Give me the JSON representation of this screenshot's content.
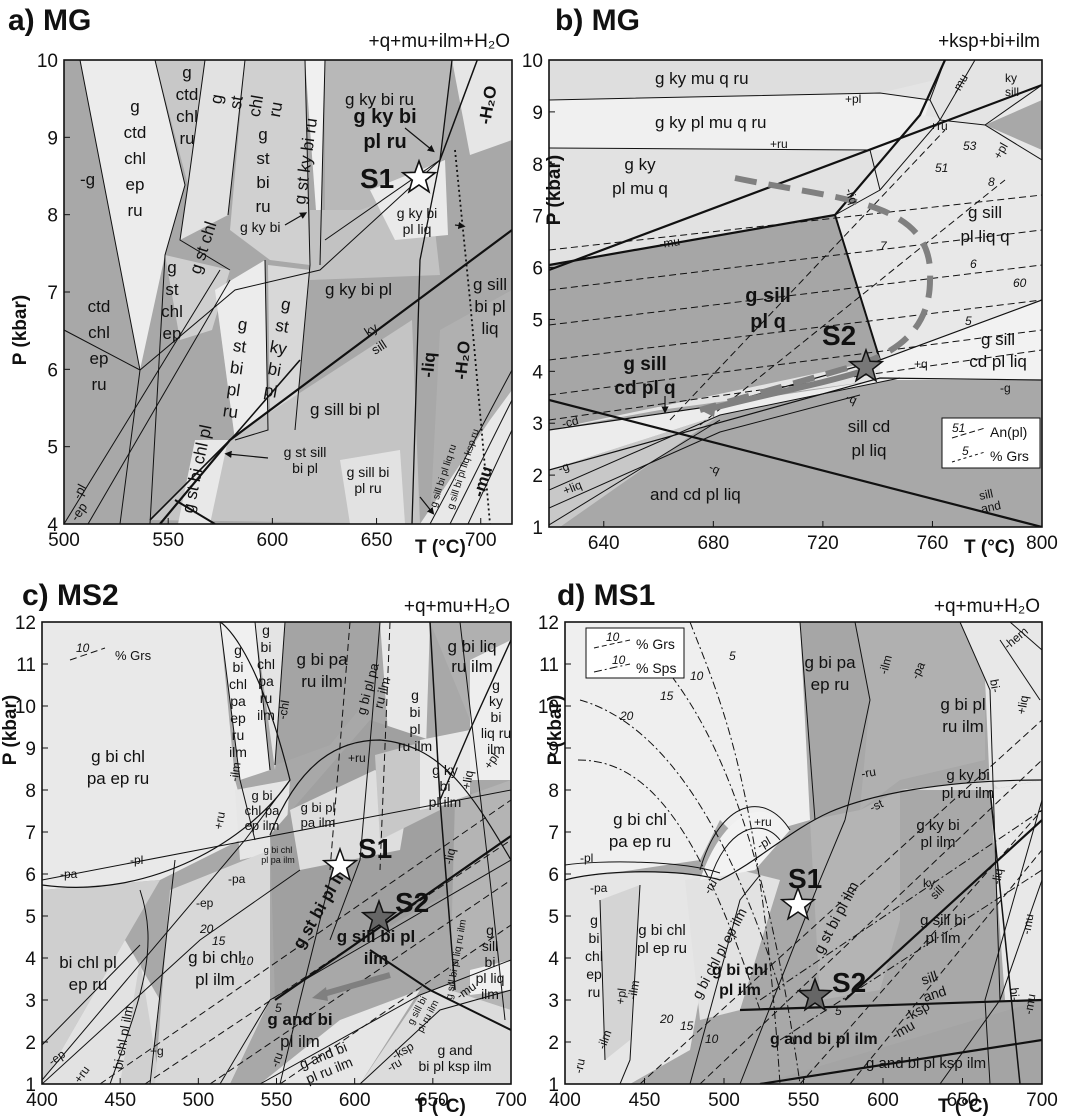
{
  "panels": [
    {
      "id": "a",
      "title": "a) MG",
      "assemblage": "+q+mu+ilm+H₂O",
      "ylabel": "P (kbar)",
      "xlabel": "T (°C)",
      "xticks": [
        "500",
        "550",
        "600",
        "650",
        "700"
      ],
      "yticks": [
        "4",
        "5",
        "6",
        "7",
        "8",
        "9",
        "10"
      ],
      "fields": [
        {
          "lines": [
            "g",
            "ctd",
            "chl",
            "ep",
            "ru"
          ]
        },
        {
          "lines": [
            "g",
            "ctd",
            "chl",
            "ru"
          ]
        },
        {
          "lines": [
            "g",
            "st",
            "chl",
            "ru"
          ]
        },
        {
          "lines": [
            "g",
            "st",
            "bi",
            "ru"
          ]
        },
        {
          "lines": [
            "g st ky bi ru"
          ]
        },
        {
          "lines": [
            "g ky bi ru"
          ]
        },
        {
          "lines": [
            "-g"
          ]
        },
        {
          "lines": [
            "ctd",
            "chl",
            "ep",
            "ru"
          ]
        },
        {
          "lines": [
            "g",
            "st",
            "chl",
            "ep"
          ]
        },
        {
          "lines": [
            "g st chl"
          ]
        },
        {
          "lines": [
            "g",
            "st",
            "bi",
            "pl",
            "ru"
          ]
        },
        {
          "lines": [
            "g",
            "st",
            "ky",
            "bi",
            "pl"
          ]
        },
        {
          "lines": [
            "g ky bi"
          ]
        },
        {
          "lines": [
            "g ky bi pl"
          ]
        },
        {
          "lines": [
            "g ky bi",
            "pl liq"
          ]
        },
        {
          "lines": [
            "g sill",
            "bi pl",
            "liq"
          ]
        },
        {
          "lines": [
            "g sill bi pl"
          ]
        },
        {
          "lines": [
            "g st bi chl pl"
          ]
        },
        {
          "lines": [
            "g st sill",
            "bi pl"
          ]
        },
        {
          "lines": [
            "g sill bi",
            "pl ru"
          ]
        },
        {
          "lines": [
            "g sill bi pl liq ru"
          ]
        },
        {
          "lines": [
            "g sill bi pl liq ksp ru"
          ]
        },
        {
          "lines": [
            "-pl"
          ]
        },
        {
          "lines": [
            "-ep"
          ]
        },
        {
          "lines": [
            "ky"
          ]
        },
        {
          "lines": [
            "sill"
          ]
        },
        {
          "lines": [
            "-liq"
          ]
        }
      ],
      "bold_labels": [
        {
          "lines": [
            "g ky bi",
            "pl ru"
          ]
        },
        {
          "lines": [
            "-H₂O"
          ]
        },
        {
          "lines": [
            "-H₂O"
          ]
        },
        {
          "lines": [
            "-mu"
          ]
        }
      ],
      "stars": [
        {
          "label": "S1",
          "fill": "#ffffff"
        }
      ]
    },
    {
      "id": "b",
      "title": "b) MG",
      "assemblage": "+ksp+bi+ilm",
      "ylabel": "P (kbar)",
      "xlabel": "T (°C)",
      "xticks": [
        "640",
        "680",
        "720",
        "760",
        "800"
      ],
      "yticks": [
        "1",
        "2",
        "3",
        "4",
        "5",
        "6",
        "7",
        "8",
        "9",
        "10"
      ],
      "fields": [
        {
          "lines": [
            "g ky mu q ru"
          ]
        },
        {
          "lines": [
            "g ky pl mu q ru"
          ]
        },
        {
          "lines": [
            "g ky",
            "pl mu q"
          ]
        },
        {
          "lines": [
            "g sill",
            "pl liq q"
          ]
        },
        {
          "lines": [
            "g sill",
            "cd pl liq"
          ]
        },
        {
          "lines": [
            "sill cd",
            "pl liq"
          ]
        },
        {
          "lines": [
            "and cd pl liq"
          ]
        },
        {
          "lines": [
            "+pl"
          ]
        },
        {
          "lines": [
            "+ru"
          ]
        },
        {
          "lines": [
            "+ru"
          ]
        },
        {
          "lines": [
            "-liq"
          ]
        },
        {
          "lines": [
            "-mu"
          ]
        },
        {
          "lines": [
            "-mu"
          ]
        },
        {
          "lines": [
            "ky"
          ]
        },
        {
          "lines": [
            "sill"
          ]
        },
        {
          "lines": [
            "+pl"
          ]
        },
        {
          "lines": [
            "+q"
          ]
        },
        {
          "lines": [
            "-q"
          ]
        },
        {
          "lines": [
            "-q"
          ]
        },
        {
          "lines": [
            "-g"
          ]
        },
        {
          "lines": [
            "-g"
          ]
        },
        {
          "lines": [
            "-cd"
          ]
        },
        {
          "lines": [
            "+liq"
          ]
        },
        {
          "lines": [
            "sill"
          ]
        },
        {
          "lines": [
            "and"
          ]
        }
      ],
      "bold_labels": [
        {
          "lines": [
            "g sill",
            "pl q"
          ]
        },
        {
          "lines": [
            "g sill",
            "cd pl q"
          ]
        }
      ],
      "isopleths": [
        "51",
        "53",
        "8",
        "7",
        "6",
        "5",
        "60"
      ],
      "legend": [
        {
          "key": "51",
          "label": "An(pl)"
        },
        {
          "key": "5",
          "label": "% Grs"
        }
      ],
      "stars": [
        {
          "label": "S2",
          "fill": "#777777"
        }
      ]
    },
    {
      "id": "c",
      "title": "c) MS2",
      "assemblage": "+q+mu+H₂O",
      "ylabel": "P (kbar)",
      "xlabel": "T (°C)",
      "xticks": [
        "400",
        "450",
        "500",
        "550",
        "600",
        "650",
        "700"
      ],
      "yticks": [
        "1",
        "2",
        "3",
        "4",
        "5",
        "6",
        "7",
        "8",
        "9",
        "10",
        "11",
        "12"
      ],
      "fields": [
        {
          "lines": [
            "g bi chl",
            "pa ep ru"
          ]
        },
        {
          "lines": [
            "g",
            "bi",
            "chl",
            "pa",
            "ep",
            "ru",
            "ilm"
          ]
        },
        {
          "lines": [
            "g",
            "bi",
            "chl",
            "pa",
            "ru",
            "ilm"
          ]
        },
        {
          "lines": [
            "g bi pa",
            "ru ilm"
          ]
        },
        {
          "lines": [
            "g bi liq",
            "ru ilm"
          ]
        },
        {
          "lines": [
            "g",
            "ky",
            "bi",
            "liq ru",
            "ilm"
          ]
        },
        {
          "lines": [
            "g",
            "bi",
            "pl",
            "ru ilm"
          ]
        },
        {
          "lines": [
            "g bi pl pa",
            "ru ilm"
          ]
        },
        {
          "lines": [
            "g bi",
            "chl pa",
            "ep ilm"
          ]
        },
        {
          "lines": [
            "g bi pl",
            "pa ilm"
          ]
        },
        {
          "lines": [
            "g ky",
            "bi",
            "pl ilm"
          ]
        },
        {
          "lines": [
            "bi chl pl",
            "ep ru"
          ]
        },
        {
          "lines": [
            "g bi chl",
            "pl ilm"
          ]
        },
        {
          "lines": [
            "bi chl pl ilm"
          ]
        },
        {
          "lines": [
            "g and bi",
            "pl ilm"
          ]
        },
        {
          "lines": [
            "g and bi",
            "pl ru ilm"
          ]
        },
        {
          "lines": [
            "g and",
            "bi pl ksp ilm"
          ]
        },
        {
          "lines": [
            "g",
            "sill",
            "bi",
            "pl liq",
            "ilm"
          ]
        },
        {
          "lines": [
            "g bi chl",
            "pl pa ilm"
          ]
        },
        {
          "lines": [
            "-pa"
          ]
        },
        {
          "lines": [
            "-pa"
          ]
        },
        {
          "lines": [
            "-ep"
          ]
        },
        {
          "lines": [
            "-pl"
          ]
        },
        {
          "lines": [
            "-ilm"
          ]
        },
        {
          "lines": [
            "+ru"
          ]
        },
        {
          "lines": [
            "+ru"
          ]
        },
        {
          "lines": [
            "-chl"
          ]
        },
        {
          "lines": [
            "-liq"
          ]
        },
        {
          "lines": [
            "+g"
          ]
        },
        {
          "lines": [
            "-ru"
          ]
        },
        {
          "lines": [
            "-ksp"
          ]
        },
        {
          "lines": [
            "-mu"
          ]
        },
        {
          "lines": [
            "-ru"
          ]
        },
        {
          "lines": [
            "-ep"
          ]
        },
        {
          "lines": [
            "+ru"
          ]
        },
        {
          "lines": [
            "% Grs"
          ]
        },
        {
          "lines": [
            "g sill bi",
            "pl ru ilm"
          ]
        },
        {
          "lines": [
            "g sill bi pl liq ru ilm"
          ]
        },
        {
          "lines": [
            "+liq"
          ]
        },
        {
          "lines": [
            "+pl"
          ]
        }
      ],
      "bold_labels": [
        {
          "lines": [
            "g st bi pl ilm"
          ]
        },
        {
          "lines": [
            "g sill bi pl",
            "ilm"
          ]
        }
      ],
      "isopleths": [
        "10",
        "20",
        "15",
        "10",
        "5"
      ],
      "stars": [
        {
          "label": "S1",
          "fill": "#ffffff"
        },
        {
          "label": "S2",
          "fill": "#666666"
        }
      ]
    },
    {
      "id": "d",
      "title": "d) MS1",
      "assemblage": "+q+mu+H₂O",
      "ylabel": "P (kbar)",
      "xlabel": "T (°C)",
      "xticks": [
        "400",
        "450",
        "500",
        "550",
        "600",
        "650",
        "700"
      ],
      "yticks": [
        "1",
        "2",
        "3",
        "4",
        "5",
        "6",
        "7",
        "8",
        "9",
        "10",
        "11",
        "12"
      ],
      "fields": [
        {
          "lines": [
            "g bi chl",
            "pa ep ru"
          ]
        },
        {
          "lines": [
            "g bi pa",
            "ep ru"
          ]
        },
        {
          "lines": [
            "g bi pl",
            "ru ilm"
          ]
        },
        {
          "lines": [
            "g ky bi",
            "pl ru ilm"
          ]
        },
        {
          "lines": [
            "g ky bi",
            "pl ilm"
          ]
        },
        {
          "lines": [
            "g bi chl",
            "pl ep ru"
          ]
        },
        {
          "lines": [
            "g",
            "bi",
            "chl",
            "ep",
            "ru"
          ]
        },
        {
          "lines": [
            "g bi chl pl ep ilm"
          ]
        },
        {
          "lines": [
            "g st bi pl ilm"
          ]
        },
        {
          "lines": [
            "g sill bi",
            "pl ilm"
          ]
        },
        {
          "lines": [
            "g and bi pl ksp ilm"
          ]
        },
        {
          "lines": [
            "-pl"
          ]
        },
        {
          "lines": [
            "-pa"
          ]
        },
        {
          "lines": [
            "-pa"
          ]
        },
        {
          "lines": [
            "-ilm"
          ]
        },
        {
          "lines": [
            "-ilm"
          ]
        },
        {
          "lines": [
            "+ru"
          ]
        },
        {
          "lines": [
            "-pl"
          ]
        },
        {
          "lines": [
            "-ru"
          ]
        },
        {
          "lines": [
            "-st"
          ]
        },
        {
          "lines": [
            "-ru"
          ]
        },
        {
          "lines": [
            "-hem"
          ]
        },
        {
          "lines": [
            "-liq"
          ]
        },
        {
          "lines": [
            "+liq"
          ]
        },
        {
          "lines": [
            "-mu"
          ]
        },
        {
          "lines": [
            "-mu"
          ]
        },
        {
          "lines": [
            "bi-"
          ]
        },
        {
          "lines": [
            "bi-"
          ]
        },
        {
          "lines": [
            "sill"
          ]
        },
        {
          "lines": [
            "and"
          ]
        },
        {
          "lines": [
            "-ksp"
          ]
        },
        {
          "lines": [
            "-mu"
          ]
        },
        {
          "lines": [
            "+pl"
          ]
        },
        {
          "lines": [
            "-ru"
          ]
        },
        {
          "lines": [
            "-ilm"
          ]
        },
        {
          "lines": [
            "ky"
          ]
        },
        {
          "lines": [
            "sill"
          ]
        }
      ],
      "bold_labels": [
        {
          "lines": [
            "g bi chl",
            "pl ilm"
          ]
        },
        {
          "lines": [
            "g and bi pl ilm"
          ]
        }
      ],
      "isopleths": [
        "5",
        "10",
        "15",
        "20",
        "20",
        "15",
        "10",
        "5"
      ],
      "legend": [
        {
          "key": "10",
          "label": "% Grs"
        },
        {
          "key": "10",
          "label": "% Sps"
        }
      ],
      "stars": [
        {
          "label": "S1",
          "fill": "#ffffff"
        },
        {
          "label": "S2",
          "fill": "#666666"
        }
      ]
    }
  ]
}
